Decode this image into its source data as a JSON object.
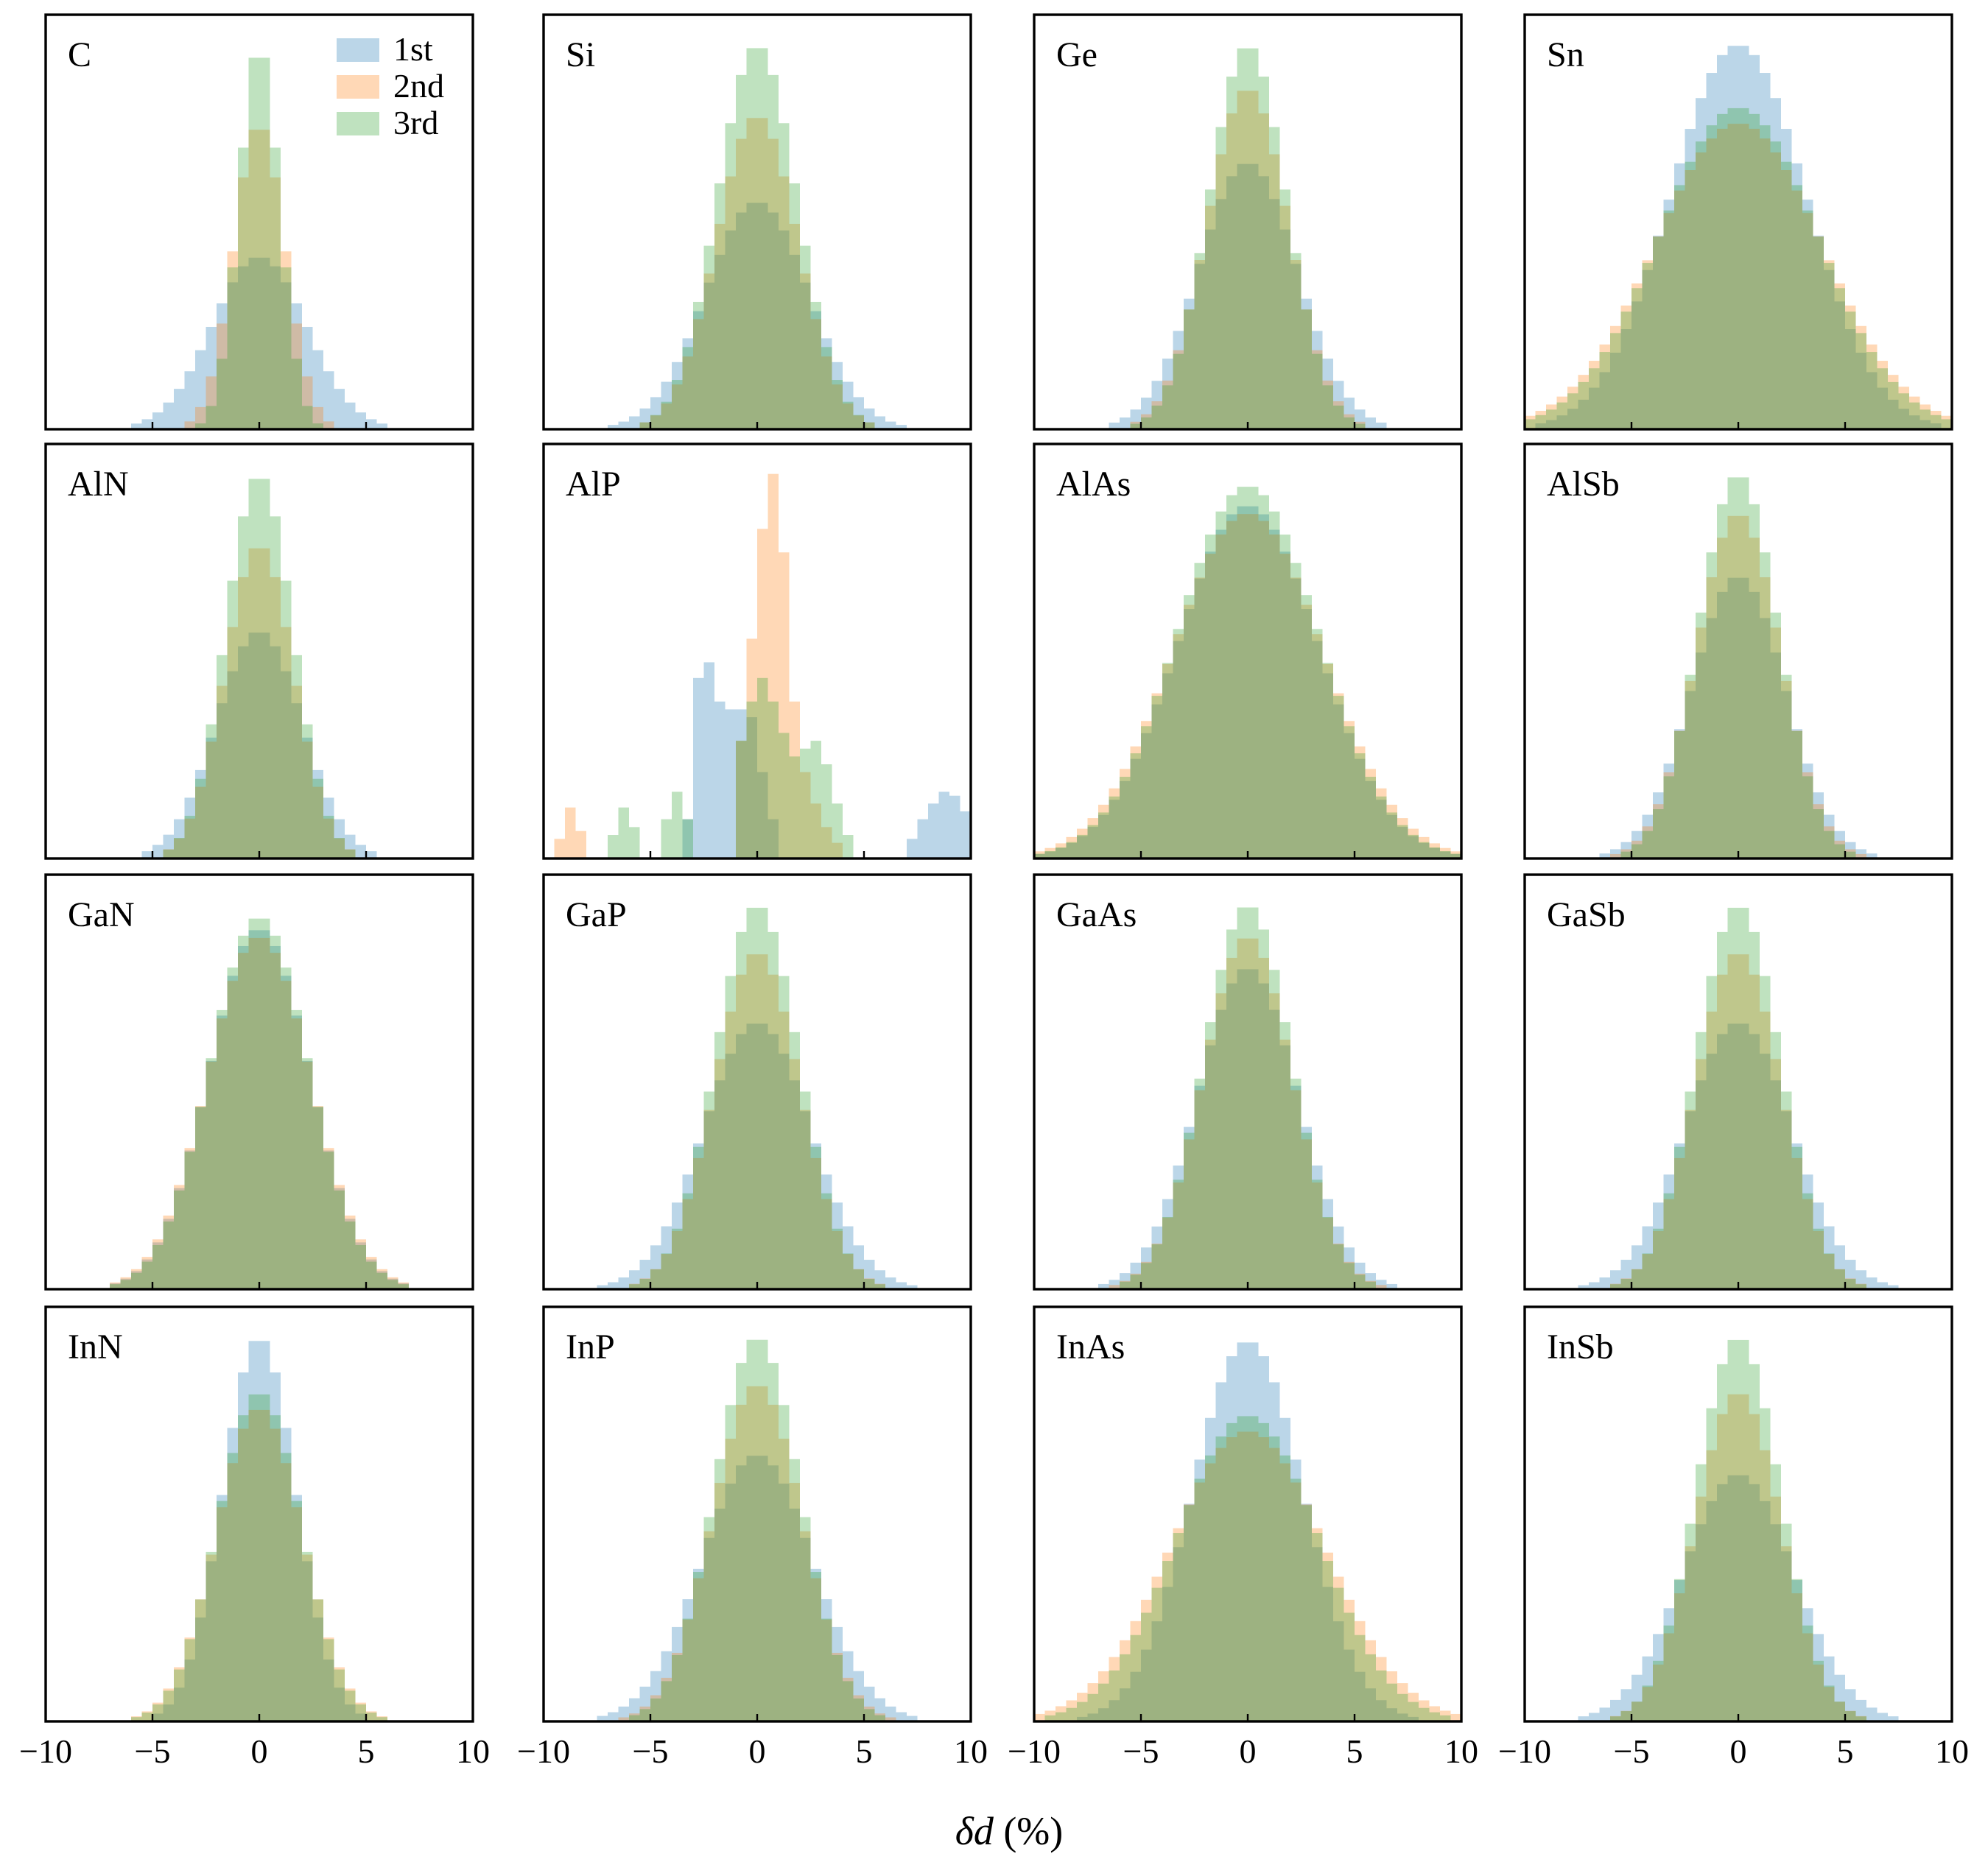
{
  "chart_data": {
    "type": "histogram-grid",
    "xlabel_symbol": "δd",
    "xlabel_unit": " (%)",
    "xlim": [
      -10,
      10
    ],
    "bin_width": 0.5,
    "bin_start": -10,
    "x_ticks": [
      -10,
      -5,
      0,
      5,
      10
    ],
    "x_tick_labels": [
      "−10",
      "−5",
      "0",
      "5",
      "10"
    ],
    "series_styles": [
      {
        "name": "1st",
        "color": "#1f77b4"
      },
      {
        "name": "2nd",
        "color": "#ff7f0e"
      },
      {
        "name": "3rd",
        "color": "#2ca02c"
      }
    ],
    "series_opacity": 0.3,
    "panels": [
      {
        "label": "C",
        "legend": true,
        "peak_height": 1.0,
        "series": [
          {
            "name": "1st",
            "kind": "gauss",
            "center": 0,
            "width": 2.2,
            "peak": 0.44
          },
          {
            "name": "2nd",
            "kind": "gauss",
            "center": 0,
            "width": 1.2,
            "peak": 0.78
          },
          {
            "name": "3rd",
            "kind": "gauss",
            "center": 0,
            "width": 0.95,
            "peak": 0.98
          }
        ]
      },
      {
        "label": "Si",
        "peak_height": 1.0,
        "series": [
          {
            "name": "1st",
            "kind": "gauss",
            "center": 0,
            "width": 2.4,
            "peak": 0.58
          },
          {
            "name": "2nd",
            "kind": "gauss",
            "center": 0,
            "width": 1.9,
            "peak": 0.8
          },
          {
            "name": "3rd",
            "kind": "gauss",
            "center": 0,
            "width": 1.85,
            "peak": 0.98
          }
        ]
      },
      {
        "label": "Ge",
        "peak_height": 1.0,
        "series": [
          {
            "name": "1st",
            "kind": "gauss",
            "center": 0,
            "width": 2.3,
            "peak": 0.68
          },
          {
            "name": "2nd",
            "kind": "gauss",
            "center": 0,
            "width": 1.9,
            "peak": 0.87
          },
          {
            "name": "3rd",
            "kind": "gauss",
            "center": 0,
            "width": 1.8,
            "peak": 0.98
          }
        ]
      },
      {
        "label": "Sn",
        "peak_height": 1.0,
        "series": [
          {
            "name": "1st",
            "kind": "gauss",
            "center": 0,
            "width": 3.2,
            "peak": 0.98
          },
          {
            "name": "2nd",
            "kind": "gauss",
            "center": 0,
            "width": 3.9,
            "peak": 0.78
          },
          {
            "name": "3rd",
            "kind": "gauss",
            "center": 0,
            "width": 3.7,
            "peak": 0.82
          }
        ]
      },
      {
        "label": "AlN",
        "peak_height": 1.0,
        "series": [
          {
            "name": "1st",
            "kind": "gauss",
            "center": 0,
            "width": 2.0,
            "peak": 0.58
          },
          {
            "name": "2nd",
            "kind": "gauss",
            "center": 0,
            "width": 1.6,
            "peak": 0.8
          },
          {
            "name": "3rd",
            "kind": "gauss",
            "center": 0,
            "width": 1.55,
            "peak": 0.98
          }
        ]
      },
      {
        "label": "AlP",
        "peak_height": 1.0,
        "series": [
          {
            "name": "1st",
            "kind": "bins",
            "bins": [
              [
                -3.5,
                0.1
              ],
              [
                -3,
                0.46
              ],
              [
                -2.5,
                0.5
              ],
              [
                -2,
                0.4
              ],
              [
                -1.5,
                0.38
              ],
              [
                -1,
                0.38
              ],
              [
                -0.5,
                0.36
              ],
              [
                0,
                0.22
              ],
              [
                0.5,
                0.1
              ],
              [
                7,
                0.05
              ],
              [
                7.5,
                0.1
              ],
              [
                8,
                0.14
              ],
              [
                8.5,
                0.17
              ],
              [
                9,
                0.16
              ],
              [
                9.5,
                0.12
              ]
            ]
          },
          {
            "name": "2nd",
            "kind": "bins",
            "bins": [
              [
                -9.5,
                0.05
              ],
              [
                -9,
                0.13
              ],
              [
                -8.5,
                0.07
              ],
              [
                -1,
                0.3
              ],
              [
                -0.5,
                0.56
              ],
              [
                0,
                0.84
              ],
              [
                0.5,
                0.98
              ],
              [
                1,
                0.78
              ],
              [
                1.5,
                0.4
              ],
              [
                2,
                0.22
              ],
              [
                2.5,
                0.14
              ],
              [
                3,
                0.08
              ],
              [
                3.5,
                0.04
              ]
            ]
          },
          {
            "name": "3rd",
            "kind": "bins",
            "bins": [
              [
                -7,
                0.06
              ],
              [
                -6.5,
                0.13
              ],
              [
                -6,
                0.08
              ],
              [
                -4.5,
                0.1
              ],
              [
                -4,
                0.17
              ],
              [
                -3.5,
                0.1
              ],
              [
                -1,
                0.3
              ],
              [
                -0.5,
                0.4
              ],
              [
                0,
                0.46
              ],
              [
                0.5,
                0.4
              ],
              [
                1,
                0.32
              ],
              [
                1.5,
                0.26
              ],
              [
                2,
                0.28
              ],
              [
                2.5,
                0.3
              ],
              [
                3,
                0.24
              ],
              [
                3.5,
                0.14
              ],
              [
                4,
                0.06
              ]
            ]
          }
        ]
      },
      {
        "label": "AlAs",
        "peak_height": 1.0,
        "series": [
          {
            "name": "1st",
            "kind": "gauss",
            "center": 0,
            "width": 3.3,
            "peak": 0.9
          },
          {
            "name": "2nd",
            "kind": "gauss",
            "center": 0,
            "width": 3.5,
            "peak": 0.88
          },
          {
            "name": "3rd",
            "kind": "gauss",
            "center": 0,
            "width": 3.3,
            "peak": 0.95
          }
        ]
      },
      {
        "label": "AlSb",
        "peak_height": 1.0,
        "series": [
          {
            "name": "1st",
            "kind": "gauss",
            "center": 0,
            "width": 2.2,
            "peak": 0.72
          },
          {
            "name": "2nd",
            "kind": "gauss",
            "center": 0,
            "width": 1.95,
            "peak": 0.88
          },
          {
            "name": "3rd",
            "kind": "gauss",
            "center": 0,
            "width": 1.85,
            "peak": 0.98
          }
        ]
      },
      {
        "label": "GaN",
        "peak_height": 1.0,
        "series": [
          {
            "name": "1st",
            "kind": "gauss",
            "center": 0,
            "width": 2.35,
            "peak": 0.92
          },
          {
            "name": "2nd",
            "kind": "gauss",
            "center": 0,
            "width": 2.4,
            "peak": 0.9
          },
          {
            "name": "3rd",
            "kind": "gauss",
            "center": 0,
            "width": 2.3,
            "peak": 0.95
          }
        ]
      },
      {
        "label": "GaP",
        "peak_height": 1.0,
        "series": [
          {
            "name": "1st",
            "kind": "gauss",
            "center": 0,
            "width": 2.5,
            "peak": 0.68
          },
          {
            "name": "2nd",
            "kind": "gauss",
            "center": 0,
            "width": 2.0,
            "peak": 0.86
          },
          {
            "name": "3rd",
            "kind": "gauss",
            "center": 0,
            "width": 1.95,
            "peak": 0.98
          }
        ]
      },
      {
        "label": "GaAs",
        "peak_height": 1.0,
        "series": [
          {
            "name": "1st",
            "kind": "gauss",
            "center": 0,
            "width": 2.35,
            "peak": 0.82
          },
          {
            "name": "2nd",
            "kind": "gauss",
            "center": 0,
            "width": 2.1,
            "peak": 0.9
          },
          {
            "name": "3rd",
            "kind": "gauss",
            "center": 0,
            "width": 2.05,
            "peak": 0.98
          }
        ]
      },
      {
        "label": "GaSb",
        "peak_height": 1.0,
        "series": [
          {
            "name": "1st",
            "kind": "gauss",
            "center": 0,
            "width": 2.5,
            "peak": 0.68
          },
          {
            "name": "2nd",
            "kind": "gauss",
            "center": 0,
            "width": 2.0,
            "peak": 0.86
          },
          {
            "name": "3rd",
            "kind": "gauss",
            "center": 0,
            "width": 1.95,
            "peak": 0.98
          }
        ]
      },
      {
        "label": "InN",
        "peak_height": 1.0,
        "series": [
          {
            "name": "1st",
            "kind": "gauss",
            "center": 0,
            "width": 1.7,
            "peak": 0.98
          },
          {
            "name": "2nd",
            "kind": "gauss",
            "center": 0,
            "width": 2.0,
            "peak": 0.8
          },
          {
            "name": "3rd",
            "kind": "gauss",
            "center": 0,
            "width": 1.95,
            "peak": 0.84
          }
        ]
      },
      {
        "label": "InP",
        "peak_height": 1.0,
        "series": [
          {
            "name": "1st",
            "kind": "gauss",
            "center": 0,
            "width": 2.6,
            "peak": 0.68
          },
          {
            "name": "2nd",
            "kind": "gauss",
            "center": 0,
            "width": 2.1,
            "peak": 0.86
          },
          {
            "name": "3rd",
            "kind": "gauss",
            "center": 0,
            "width": 2.0,
            "peak": 0.98
          }
        ]
      },
      {
        "label": "InAs",
        "peak_height": 1.0,
        "series": [
          {
            "name": "1st",
            "kind": "gauss",
            "center": 0,
            "width": 2.6,
            "peak": 0.97
          },
          {
            "name": "2nd",
            "kind": "gauss",
            "center": 0,
            "width": 3.6,
            "peak": 0.74
          },
          {
            "name": "3rd",
            "kind": "gauss",
            "center": 0,
            "width": 3.3,
            "peak": 0.78
          }
        ]
      },
      {
        "label": "InSb",
        "peak_height": 1.0,
        "series": [
          {
            "name": "1st",
            "kind": "gauss",
            "center": 0,
            "width": 2.6,
            "peak": 0.63
          },
          {
            "name": "2nd",
            "kind": "gauss",
            "center": 0,
            "width": 2.0,
            "peak": 0.84
          },
          {
            "name": "3rd",
            "kind": "gauss",
            "center": 0,
            "width": 1.95,
            "peak": 0.98
          }
        ]
      }
    ]
  }
}
